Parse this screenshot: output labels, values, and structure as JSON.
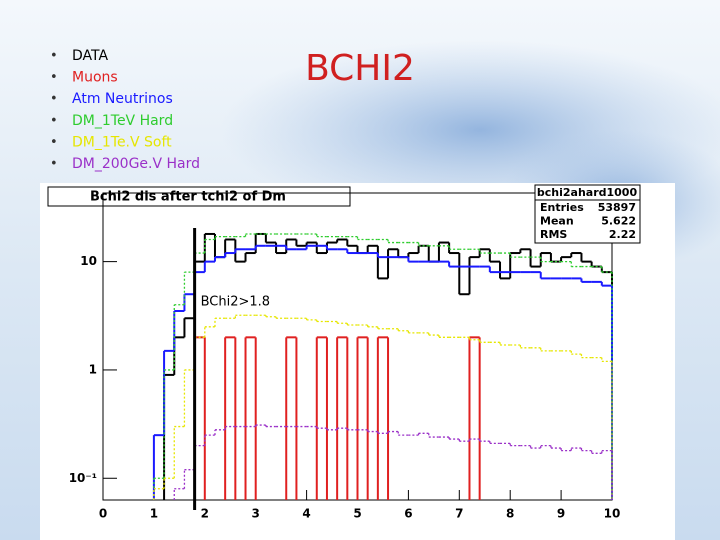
{
  "chart_data": {
    "type": "histogram",
    "slide_title": "BCHI2",
    "title": "Bchi2 dis after tchi2 of Dm",
    "stats": {
      "name": "bchi2ahard1000",
      "rows": [
        [
          "Entries",
          "53897"
        ],
        [
          "Mean",
          "5.622"
        ],
        [
          "RMS",
          "2.22"
        ]
      ]
    },
    "cut": {
      "x": 1.8,
      "label": "BChi2>1.8"
    },
    "xlim": [
      0,
      10
    ],
    "xticks": [
      0,
      1,
      2,
      3,
      4,
      5,
      6,
      7,
      8,
      9,
      10
    ],
    "ylim": [
      0.063,
      43
    ],
    "log_y": true,
    "yticks": [
      {
        "value": 0.1,
        "label": "10⁻¹"
      },
      1,
      10
    ],
    "bins": [
      1.0,
      1.2,
      1.4,
      1.6,
      1.8,
      2.0,
      2.2,
      2.4,
      2.6,
      2.8,
      3.0,
      3.2,
      3.4,
      3.6,
      3.8,
      4.0,
      4.2,
      4.4,
      4.6,
      4.8,
      5.0,
      5.2,
      5.4,
      5.6,
      5.8,
      6.0,
      6.2,
      6.4,
      6.6,
      6.8,
      7.0,
      7.2,
      7.4,
      7.6,
      7.8,
      8.0,
      8.2,
      8.4,
      8.6,
      8.8,
      9.0,
      9.2,
      9.4,
      9.6,
      9.8,
      10.0
    ],
    "series": [
      {
        "name": "DATA",
        "color": "#000000",
        "line_style": "solid",
        "values": [
          null,
          0.9,
          2.0,
          3.0,
          10,
          18,
          11,
          16,
          10,
          12,
          18,
          15,
          12,
          16,
          14,
          15,
          12,
          15,
          16,
          14,
          12,
          14,
          7,
          13,
          11,
          12,
          14,
          10,
          15,
          12,
          5,
          11,
          13,
          10,
          7,
          12,
          13,
          9,
          12,
          10,
          11,
          12,
          10,
          9,
          8
        ]
      },
      {
        "name": "Muons",
        "color": "#e02020",
        "line_style": "solid",
        "values": [
          null,
          null,
          null,
          null,
          2,
          null,
          null,
          2,
          null,
          2,
          null,
          null,
          null,
          2,
          null,
          null,
          2,
          null,
          2,
          null,
          2,
          null,
          2,
          null,
          null,
          null,
          null,
          null,
          null,
          null,
          null,
          2,
          null,
          null,
          null,
          null,
          null,
          null,
          null,
          null,
          null,
          null,
          null,
          null,
          null
        ]
      },
      {
        "name": "Atm Neutrinos",
        "color": "#1a1aff",
        "line_style": "solid",
        "values": [
          0.25,
          1.5,
          3.5,
          5,
          8,
          10,
          11,
          12,
          13,
          13,
          14,
          14,
          14,
          13,
          13,
          14,
          14,
          13,
          13,
          12,
          12,
          12,
          11,
          11,
          11,
          10,
          10,
          10,
          10,
          9,
          9,
          9,
          9,
          8,
          8,
          8,
          8,
          8,
          7,
          7,
          7,
          7,
          6.5,
          6.5,
          6
        ]
      },
      {
        "name": "DM_1TeV Hard",
        "color": "#2ecc2e",
        "line_style": "dotted",
        "values": [
          0.1,
          1,
          4,
          8,
          12,
          16,
          17,
          17,
          17,
          18,
          18,
          18,
          18,
          18,
          18,
          18,
          17,
          17,
          17,
          17,
          16,
          16,
          16,
          15,
          15,
          15,
          14,
          14,
          14,
          13,
          13,
          13,
          12,
          12,
          12,
          11,
          11,
          11,
          10,
          10,
          10,
          9,
          9,
          9,
          8
        ]
      },
      {
        "name": "DM_1Te.V Soft",
        "color": "#e6e600",
        "line_style": "dotted",
        "values": [
          0.08,
          0.1,
          0.3,
          1,
          2,
          2.5,
          3,
          3,
          3.2,
          3.2,
          3.2,
          3.1,
          3,
          3,
          3,
          2.9,
          2.8,
          2.8,
          2.7,
          2.6,
          2.6,
          2.5,
          2.4,
          2.4,
          2.3,
          2.2,
          2.2,
          2.1,
          2,
          2,
          2,
          1.9,
          1.8,
          1.8,
          1.7,
          1.7,
          1.6,
          1.6,
          1.5,
          1.5,
          1.5,
          1.4,
          1.3,
          1.3,
          1.2
        ]
      },
      {
        "name": "DM_200Ge.V Hard",
        "color": "#9a30c8",
        "line_style": "dotted",
        "values": [
          null,
          null,
          0.08,
          0.12,
          0.2,
          0.25,
          0.28,
          0.3,
          0.3,
          0.3,
          0.31,
          0.3,
          0.3,
          0.3,
          0.3,
          0.3,
          0.29,
          0.28,
          0.29,
          0.28,
          0.28,
          0.27,
          0.26,
          0.27,
          0.25,
          0.25,
          0.26,
          0.24,
          0.24,
          0.23,
          0.22,
          0.23,
          0.22,
          0.21,
          0.21,
          0.2,
          0.2,
          0.19,
          0.2,
          0.19,
          0.18,
          0.19,
          0.18,
          0.17,
          0.18
        ]
      }
    ]
  }
}
